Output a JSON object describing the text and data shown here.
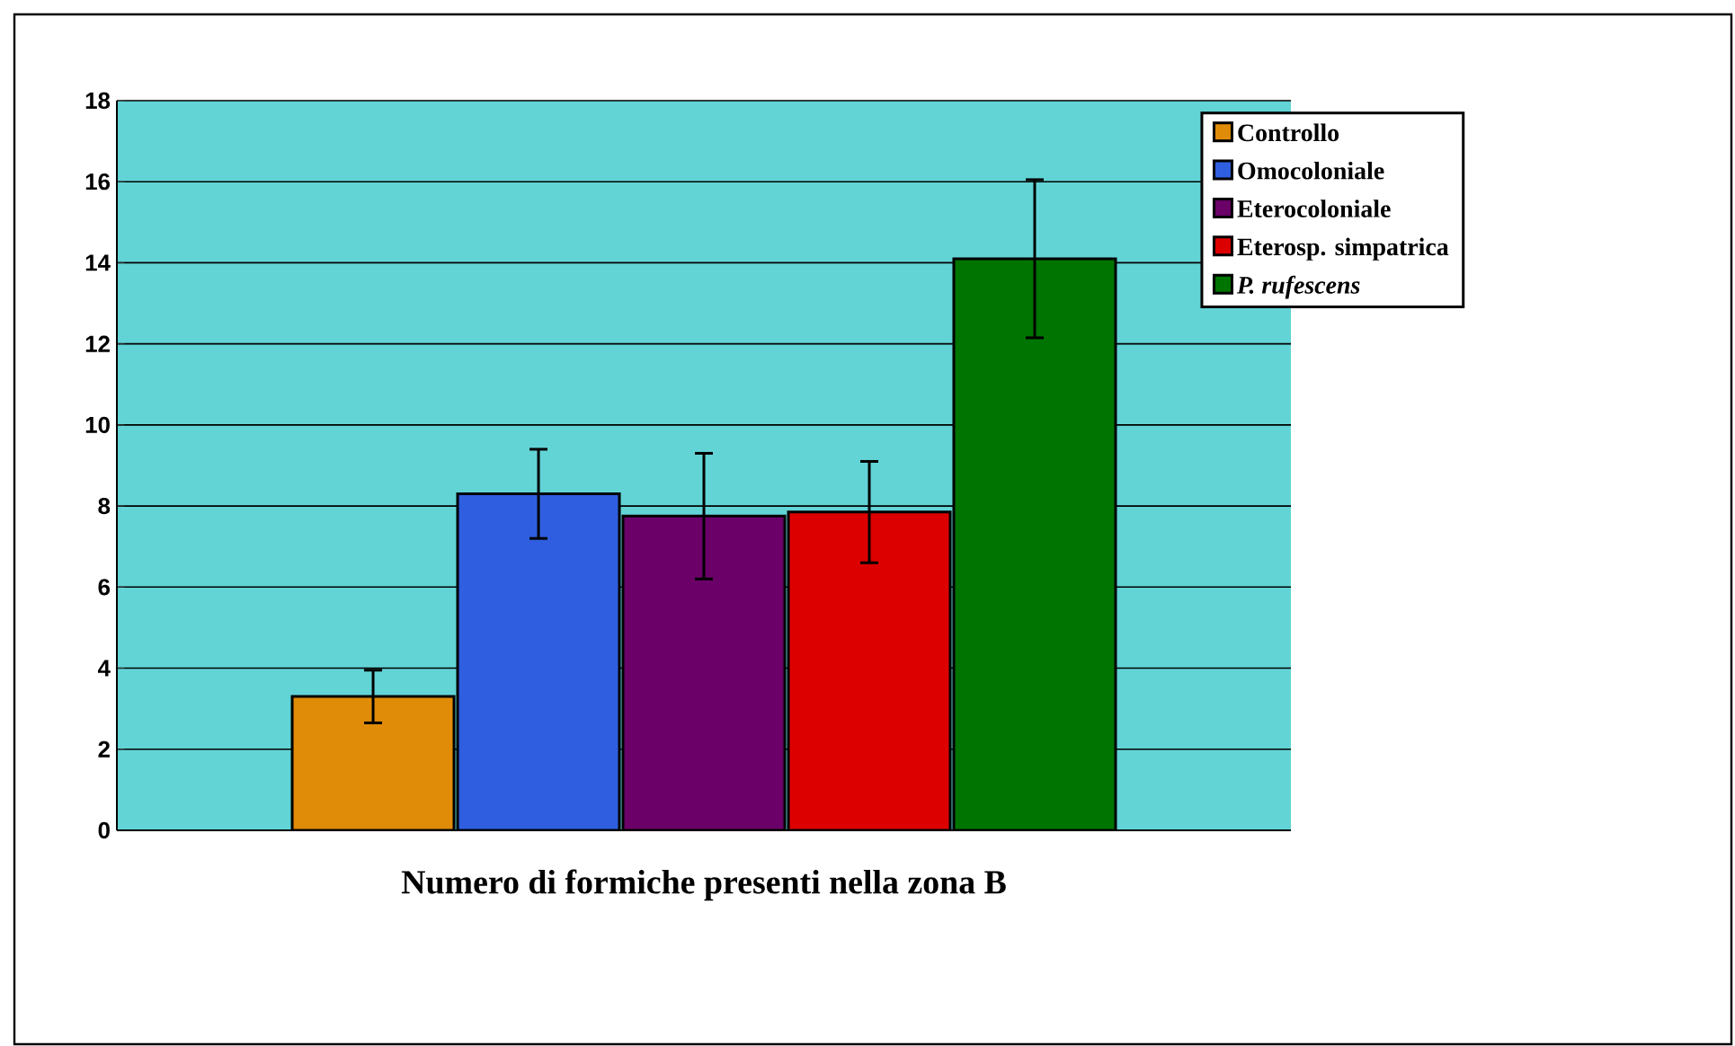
{
  "chart_data": {
    "type": "bar",
    "categories": [
      "Numero di formiche presenti nella zona B"
    ],
    "series": [
      {
        "name": "Controllo",
        "color": "#e08c08",
        "values": [
          3.3
        ],
        "errors": [
          0.65
        ]
      },
      {
        "name": "Omocoloniale",
        "color": "#2f5fe0",
        "values": [
          8.3
        ],
        "errors": [
          1.1
        ]
      },
      {
        "name": "Eterocoloniale",
        "color": "#6a0068",
        "values": [
          7.75
        ],
        "errors": [
          1.55
        ]
      },
      {
        "name": "Eterosp. simpatrica",
        "color": "#dd0000",
        "values": [
          7.85
        ],
        "errors": [
          1.25
        ]
      },
      {
        "name": "*P. rufescens*",
        "color": "#007400",
        "values": [
          14.1
        ],
        "errors": [
          1.95
        ]
      }
    ],
    "ylim": [
      0,
      18
    ],
    "yticks": [
      0,
      2,
      4,
      6,
      8,
      10,
      12,
      14,
      16,
      18
    ],
    "grid": "y",
    "legend": "top right"
  }
}
